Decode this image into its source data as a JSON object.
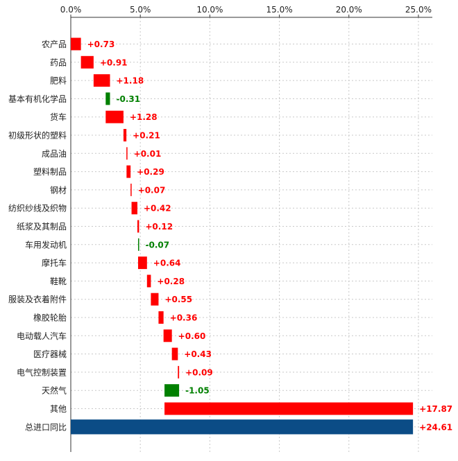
{
  "chart_data": {
    "type": "bar",
    "subtype": "waterfall-horizontal",
    "title": "",
    "xlabel": "",
    "ylabel": "",
    "x_axis_position": "top",
    "xlim": [
      0,
      26
    ],
    "x_ticks": [
      0,
      5,
      10,
      15,
      20,
      25
    ],
    "x_tick_labels": [
      "0.0%",
      "5.0%",
      "10.0%",
      "15.0%",
      "20.0%",
      "25.0%"
    ],
    "grid": true,
    "legend": "none",
    "categories": [
      "农产品",
      "药品",
      "肥料",
      "基本有机化学品",
      "货车",
      "初级形状的塑料",
      "成品油",
      "塑料制品",
      "钢材",
      "纺织纱线及织物",
      "纸浆及其制品",
      "车用发动机",
      "摩托车",
      "鞋靴",
      "服装及衣着附件",
      "橡胶轮胎",
      "电动载人汽车",
      "医疗器械",
      "电气控制装置",
      "天然气",
      "其他",
      "总进口同比"
    ],
    "values": [
      0.73,
      0.91,
      1.18,
      -0.31,
      1.28,
      0.21,
      0.01,
      0.29,
      0.07,
      0.42,
      0.12,
      -0.07,
      0.64,
      0.28,
      0.55,
      0.36,
      0.6,
      0.43,
      0.09,
      -1.05,
      17.87,
      24.61
    ],
    "value_labels": [
      "+0.73",
      "+0.91",
      "+1.18",
      "-0.31",
      "+1.28",
      "+0.21",
      "+0.01",
      "+0.29",
      "+0.07",
      "+0.42",
      "+0.12",
      "-0.07",
      "+0.64",
      "+0.28",
      "+0.55",
      "+0.36",
      "+0.60",
      "+0.43",
      "+0.09",
      "-1.05",
      "+17.87",
      "+24.61"
    ],
    "total_index": 21,
    "colors": {
      "positive": "#ff0000",
      "negative": "#008000",
      "total": "#0b4c86",
      "grid": "#c8c8c8",
      "axis": "#333333",
      "text": "#222222"
    }
  }
}
